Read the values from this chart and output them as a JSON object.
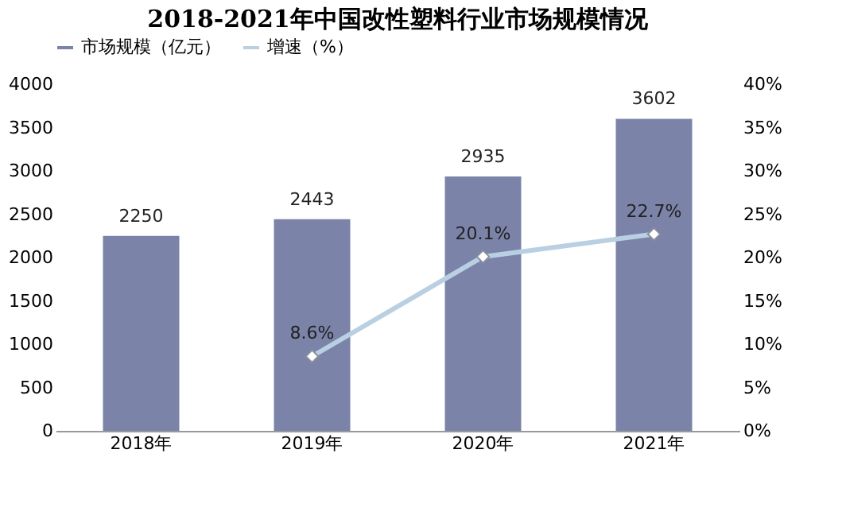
{
  "chart_data": {
    "type": "bar",
    "title": "2018-2021年中国改性塑料行业市场规模情况",
    "categories": [
      "2018年",
      "2019年",
      "2020年",
      "2021年"
    ],
    "series": [
      {
        "name": "市场规模（亿元）",
        "color": "#7b83a9",
        "values": [
          2250,
          2443,
          2935,
          3602
        ]
      },
      {
        "name": "增速（%）",
        "type": "line",
        "axis": "y2",
        "color": "#b9d0e2",
        "marker": "diamond",
        "values": [
          null,
          8.6,
          20.1,
          22.7
        ],
        "value_labels": [
          null,
          "8.6%",
          "20.1%",
          "22.7%"
        ]
      }
    ],
    "ylim": [
      0,
      4000
    ],
    "yticks": [
      0,
      500,
      1000,
      1500,
      2000,
      2500,
      3000,
      3500,
      4000
    ],
    "y2lim": [
      0,
      40
    ],
    "y2ticks": [
      {
        "value": 0,
        "label": "0%"
      },
      {
        "value": 5,
        "label": "5%"
      },
      {
        "value": 10,
        "label": "10%"
      },
      {
        "value": 15,
        "label": "15%"
      },
      {
        "value": 20,
        "label": "20%"
      },
      {
        "value": 25,
        "label": "25%"
      },
      {
        "value": 30,
        "label": "30%"
      },
      {
        "value": 35,
        "label": "35%"
      },
      {
        "value": 40,
        "label": "40%"
      }
    ],
    "data_labels": true,
    "legend": "top",
    "grid": false
  }
}
